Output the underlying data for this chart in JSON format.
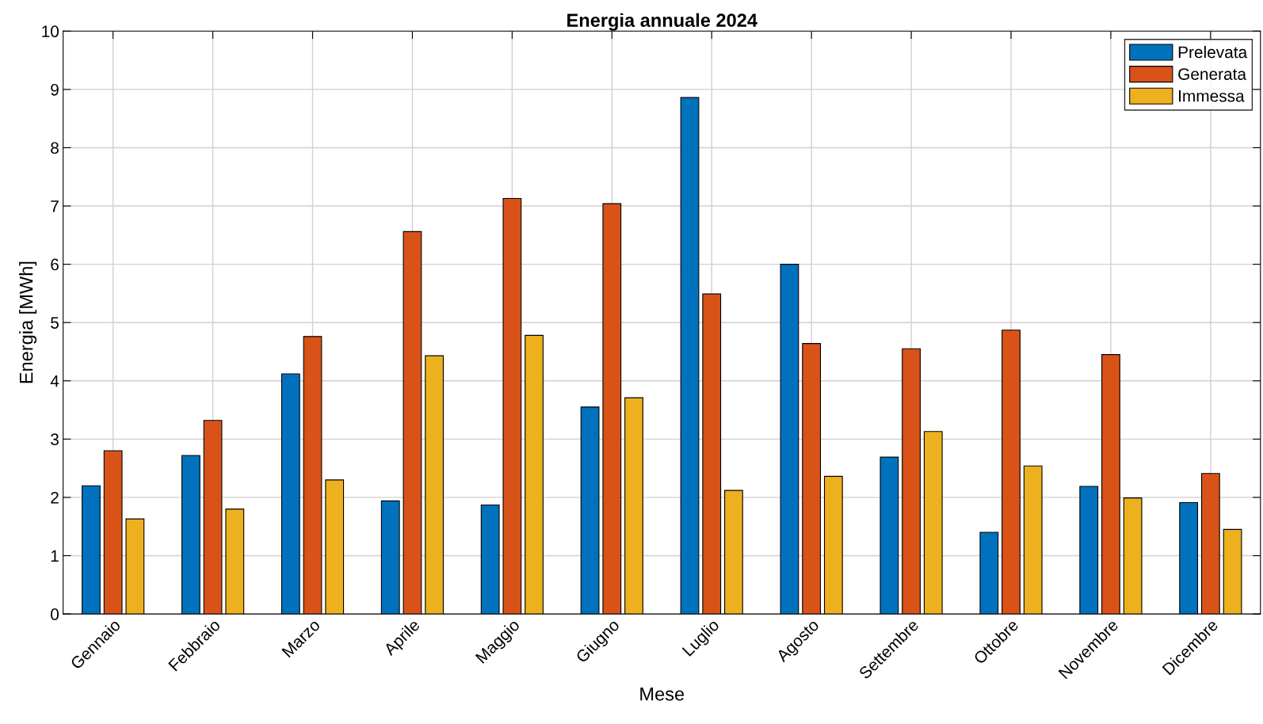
{
  "chart_data": {
    "type": "bar",
    "title": "Energia annuale 2024",
    "xlabel": "Mese",
    "ylabel": "Energia [MWh]",
    "categories": [
      "Gennaio",
      "Febbraio",
      "Marzo",
      "Aprile",
      "Maggio",
      "Giugno",
      "Luglio",
      "Agosto",
      "Settembre",
      "Ottobre",
      "Novembre",
      "Dicembre"
    ],
    "series": [
      {
        "name": "Prelevata",
        "color": "#0072bd",
        "values": [
          2.2,
          2.72,
          4.12,
          1.94,
          1.87,
          3.55,
          8.86,
          6.0,
          2.69,
          1.4,
          2.19,
          1.91
        ]
      },
      {
        "name": "Generata",
        "color": "#d95319",
        "values": [
          2.8,
          3.32,
          4.76,
          6.56,
          7.13,
          7.04,
          5.49,
          4.64,
          4.55,
          4.87,
          4.45,
          2.41
        ]
      },
      {
        "name": "Immessa",
        "color": "#edb120",
        "values": [
          1.63,
          1.8,
          2.3,
          4.43,
          4.78,
          3.71,
          2.12,
          2.36,
          3.13,
          2.54,
          1.99,
          1.45
        ]
      }
    ],
    "ylim": [
      0,
      10
    ],
    "yticks": [
      0,
      1,
      2,
      3,
      4,
      5,
      6,
      7,
      8,
      9,
      10
    ],
    "grid": true,
    "legend": "top right"
  }
}
